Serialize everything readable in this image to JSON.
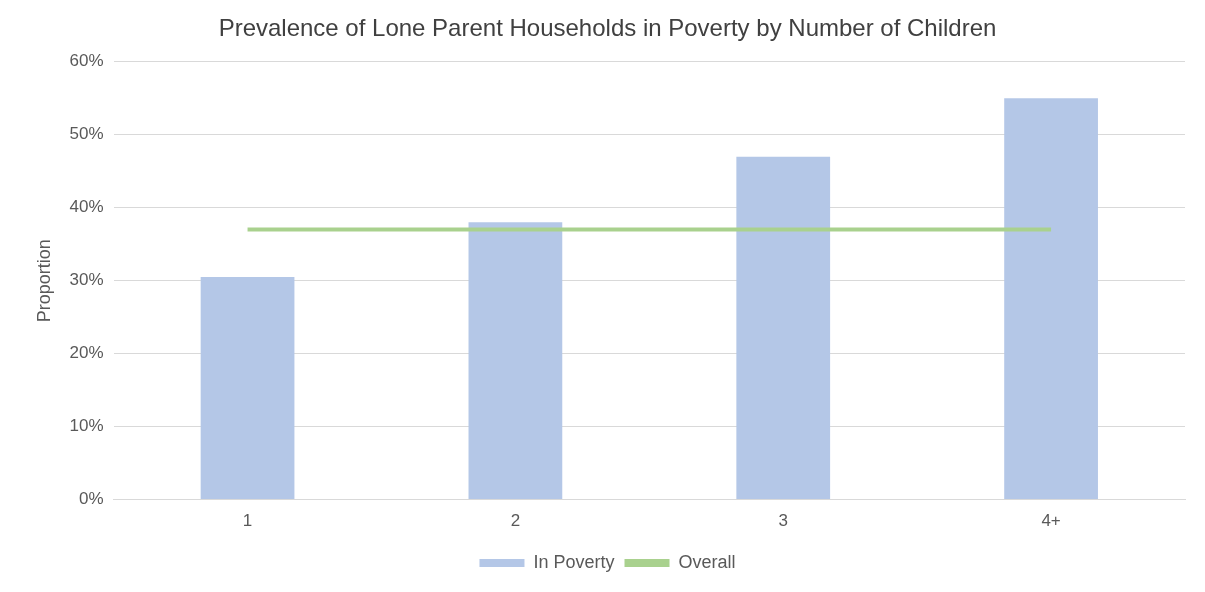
{
  "chart_data": {
    "type": "bar",
    "title": "Prevalence of Lone Parent Households in Poverty by Number of Children",
    "ylabel": "Proportion",
    "categories": [
      "1",
      "2",
      "3",
      "4+"
    ],
    "series": [
      {
        "name": "In Poverty",
        "color": "#b4c7e7",
        "values": [
          30.5,
          38,
          47,
          55
        ]
      },
      {
        "name": "Overall",
        "type": "line",
        "color": "#a9d18e",
        "values": [
          37,
          37,
          37,
          37
        ]
      }
    ],
    "ylim": [
      0,
      60
    ],
    "yticks": [
      {
        "value": 0,
        "label": "0%"
      },
      {
        "value": 10,
        "label": "10%"
      },
      {
        "value": 20,
        "label": "20%"
      },
      {
        "value": 30,
        "label": "30%"
      },
      {
        "value": 40,
        "label": "40%"
      },
      {
        "value": 50,
        "label": "50%"
      },
      {
        "value": 60,
        "label": "60%"
      }
    ],
    "grid": "y",
    "legend": "bottom",
    "marker": "none"
  }
}
